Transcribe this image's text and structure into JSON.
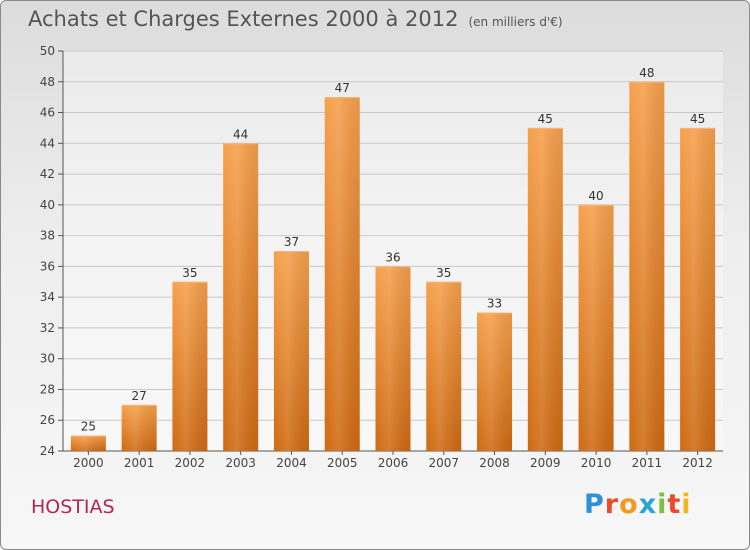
{
  "header": {
    "title": "Achats et Charges Externes 2000 à 2012",
    "unit": "(en milliers d'€)"
  },
  "commune": "HOSTIAS",
  "brand": {
    "letters": [
      "P",
      "r",
      "o",
      "x",
      "i",
      "t",
      "i"
    ]
  },
  "colors": {
    "bar": "#f0913a",
    "bar_dark": "#cf6a12",
    "title": "#555555",
    "commune": "#b5264f"
  },
  "chart_data": {
    "type": "bar",
    "title": "Achats et Charges Externes 2000 à 2012",
    "subtitle": "(en milliers d'€)",
    "categories": [
      "2000",
      "2001",
      "2002",
      "2003",
      "2004",
      "2005",
      "2006",
      "2007",
      "2008",
      "2009",
      "2010",
      "2011",
      "2012"
    ],
    "values": [
      25,
      27,
      35,
      44,
      37,
      47,
      36,
      35,
      33,
      45,
      40,
      48,
      45
    ],
    "ylim": [
      24,
      50
    ],
    "yticks": [
      24,
      26,
      28,
      30,
      32,
      34,
      36,
      38,
      40,
      42,
      44,
      46,
      48,
      50
    ],
    "grid": true,
    "data_labels": true
  }
}
